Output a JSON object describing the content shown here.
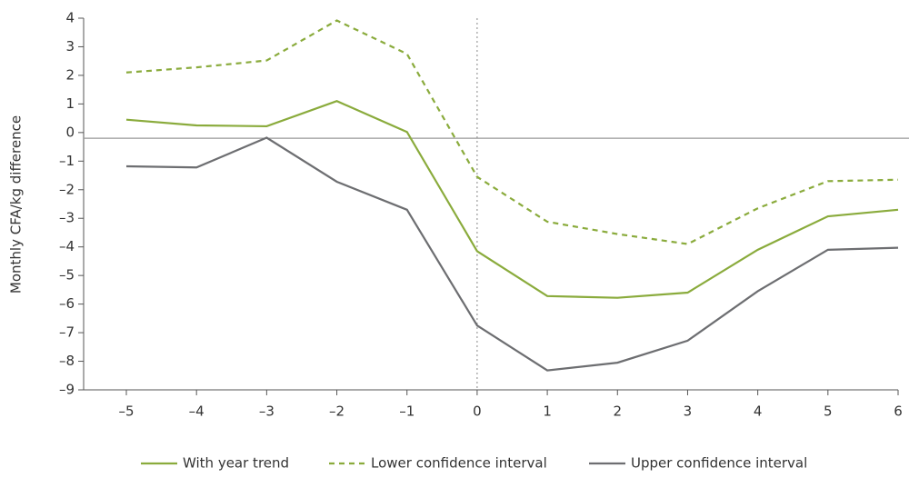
{
  "chart_data": {
    "type": "line",
    "y_label": "Monthly CFA/kg difference",
    "x": [
      -5,
      -4,
      -3,
      -2,
      -1,
      0,
      1,
      2,
      3,
      4,
      5,
      6
    ],
    "series": [
      {
        "name": "With year trend",
        "color": "#8aab3c",
        "dashed": false,
        "values": [
          0.45,
          0.25,
          0.22,
          1.1,
          0.02,
          -4.15,
          -5.72,
          -5.78,
          -5.6,
          -4.1,
          -2.93,
          -2.7
        ]
      },
      {
        "name": "Lower confidence interval",
        "color": "#8aab3c",
        "dashed": true,
        "values": [
          2.1,
          2.28,
          2.52,
          3.92,
          2.75,
          -1.55,
          -3.12,
          -3.55,
          -3.9,
          -2.65,
          -1.7,
          -1.65
        ]
      },
      {
        "name": "Upper confidence interval",
        "color": "#6d6e71",
        "dashed": false,
        "values": [
          -1.18,
          -1.22,
          -0.18,
          -1.72,
          -2.7,
          -6.75,
          -8.32,
          -8.05,
          -7.28,
          -5.55,
          -4.1,
          -4.03
        ]
      }
    ],
    "xlim": [
      -5.6,
      6
    ],
    "xticks": [
      {
        "value": -5,
        "label": "–5"
      },
      {
        "value": -4,
        "label": "–4"
      },
      {
        "value": -3,
        "label": "–3"
      },
      {
        "value": -2,
        "label": "–2"
      },
      {
        "value": -1,
        "label": "–1"
      },
      0,
      1,
      2,
      3,
      4,
      5,
      6
    ],
    "ylim": [
      -9,
      4
    ],
    "yticks": [
      4,
      3,
      2,
      1,
      0,
      {
        "value": -1,
        "label": "–1"
      },
      {
        "value": -2,
        "label": "–2"
      },
      {
        "value": -3,
        "label": "–3"
      },
      {
        "value": -4,
        "label": "–4"
      },
      {
        "value": -5,
        "label": "–5"
      },
      {
        "value": -6,
        "label": "–6"
      },
      {
        "value": -7,
        "label": "–7"
      },
      {
        "value": -8,
        "label": "–8"
      },
      {
        "value": -9,
        "label": "–9"
      }
    ],
    "hline": -0.2,
    "vline": 0,
    "legend": "bottom"
  }
}
